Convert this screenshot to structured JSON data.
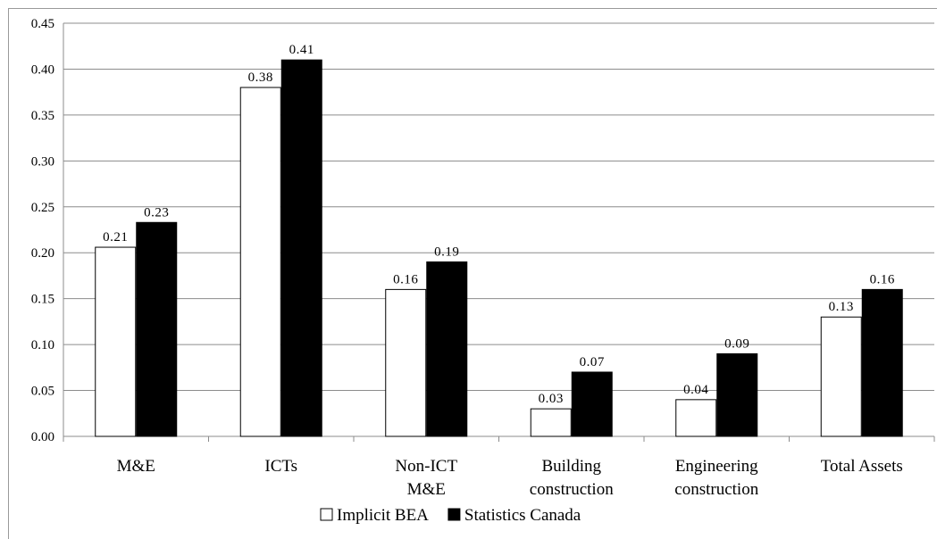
{
  "chart_data": {
    "type": "bar",
    "categories": [
      [
        "M&E"
      ],
      [
        "ICTs"
      ],
      [
        "Non-ICT",
        "M&E"
      ],
      [
        "Building",
        "construction"
      ],
      [
        "Engineering",
        "construction"
      ],
      [
        "Total Assets"
      ]
    ],
    "series": [
      {
        "name": "Implicit BEA",
        "color": "#ffffff",
        "values": [
          0.206,
          0.38,
          0.16,
          0.03,
          0.04,
          0.13
        ],
        "labels": [
          "0.21",
          "0.38",
          "0.16",
          "0.03",
          "0.04",
          "0.13"
        ]
      },
      {
        "name": "Statistics Canada",
        "color": "#000000",
        "values": [
          0.233,
          0.41,
          0.19,
          0.07,
          0.09,
          0.16
        ],
        "labels": [
          "0.23",
          "0.41",
          "0.19",
          "0.07",
          "0.09",
          "0.16"
        ]
      }
    ],
    "ylim": [
      0,
      0.45
    ],
    "yticks": [
      "0.00",
      "0.05",
      "0.10",
      "0.15",
      "0.20",
      "0.25",
      "0.30",
      "0.35",
      "0.40",
      "0.45"
    ],
    "grid": true,
    "legend": "bottom"
  }
}
